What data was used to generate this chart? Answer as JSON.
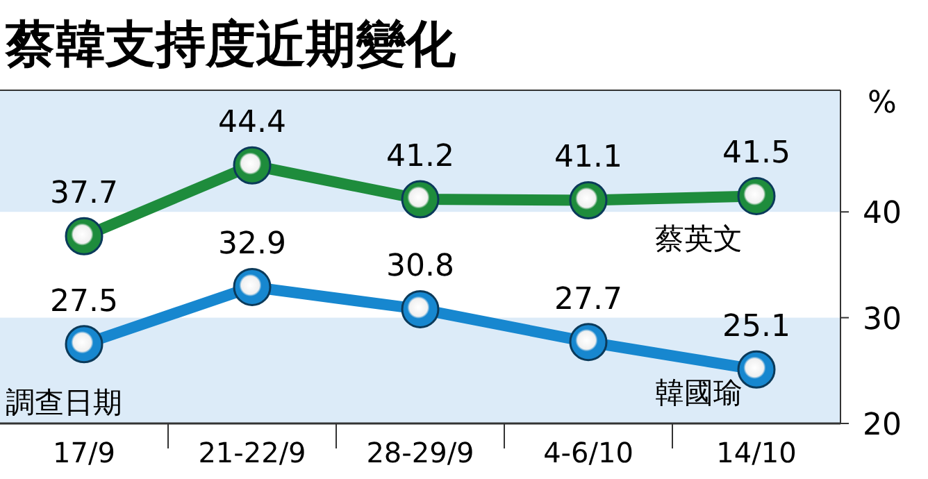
{
  "chart_data": {
    "type": "line",
    "title": "蔡韓支持度近期變化",
    "xlabel": "調查日期",
    "ylabel": "%",
    "categories": [
      "17/9",
      "21-22/9",
      "28-29/9",
      "4-6/10",
      "14/10"
    ],
    "series": [
      {
        "name": "蔡英文",
        "color": "#1e8c3c",
        "values": [
          37.7,
          44.4,
          41.2,
          41.1,
          41.5
        ]
      },
      {
        "name": "韓國瑜",
        "color": "#1787cf",
        "values": [
          27.5,
          32.9,
          30.8,
          27.7,
          25.1
        ]
      }
    ],
    "ylim": [
      20,
      51.5
    ],
    "yticks": [
      20,
      30,
      40
    ],
    "bands": [
      {
        "axis": "y",
        "from": 20,
        "to": 30,
        "color": "#dcebf8"
      },
      {
        "axis": "y",
        "from": 40,
        "to": 51.5,
        "color": "#dcebf8"
      }
    ],
    "marker": "circle",
    "data_labels": true,
    "legend": false
  }
}
